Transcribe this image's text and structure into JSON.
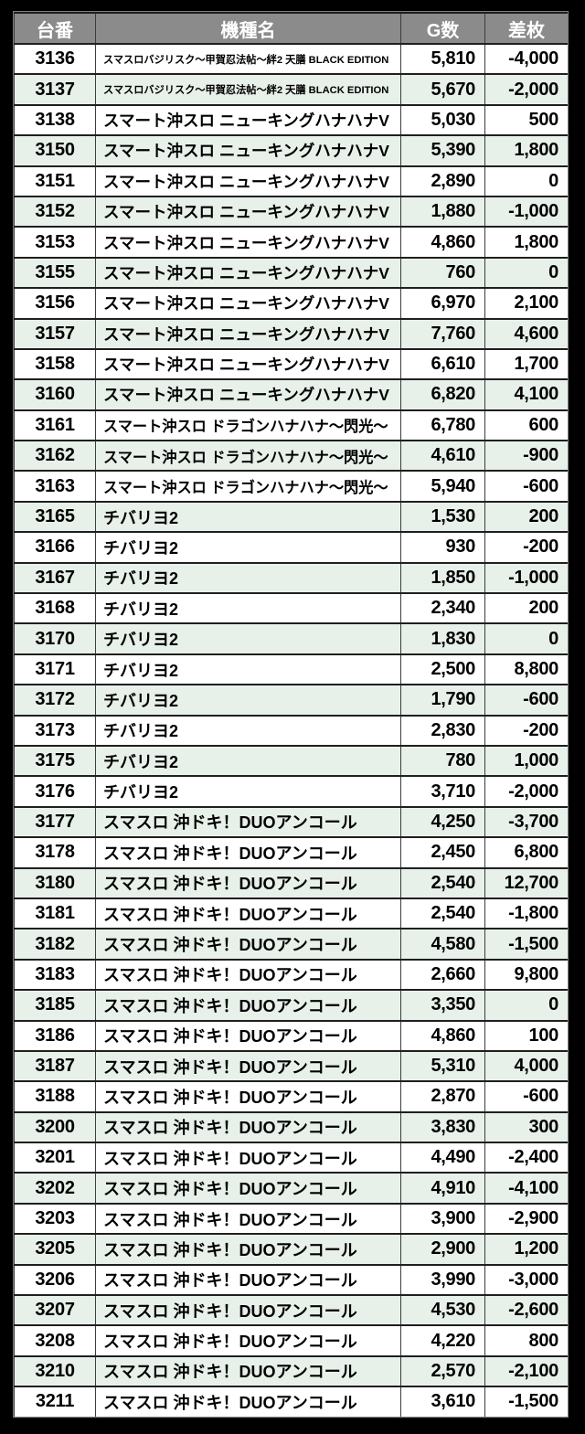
{
  "colors": {
    "page_background": "#000000",
    "header_background": "#8b8b8b",
    "header_text": "#ffffff",
    "row_background": "#ffffff",
    "row_alt_background": "#e8f0ea",
    "cell_text": "#000000",
    "horizontal_border": "#1f1f1f",
    "vertical_border": "#3c3c3c",
    "outer_outline": "#7d7d7d"
  },
  "table": {
    "columns": [
      {
        "label": "台番"
      },
      {
        "label": "機種名"
      },
      {
        "label": "G数"
      },
      {
        "label": "差枚"
      }
    ],
    "rows": [
      [
        "3136",
        "スマスロバジリスク～甲賀忍法帖～絆2 天膳 BLACK EDITION",
        "5,810",
        "-4,000"
      ],
      [
        "3137",
        "スマスロバジリスク～甲賀忍法帖～絆2 天膳 BLACK EDITION",
        "5,670",
        "-2,000"
      ],
      [
        "3138",
        "スマート沖スロ ニューキングハナハナV",
        "5,030",
        "500"
      ],
      [
        "3150",
        "スマート沖スロ ニューキングハナハナV",
        "5,390",
        "1,800"
      ],
      [
        "3151",
        "スマート沖スロ ニューキングハナハナV",
        "2,890",
        "0"
      ],
      [
        "3152",
        "スマート沖スロ ニューキングハナハナV",
        "1,880",
        "-1,000"
      ],
      [
        "3153",
        "スマート沖スロ ニューキングハナハナV",
        "4,860",
        "1,800"
      ],
      [
        "3155",
        "スマート沖スロ ニューキングハナハナV",
        "760",
        "0"
      ],
      [
        "3156",
        "スマート沖スロ ニューキングハナハナV",
        "6,970",
        "2,100"
      ],
      [
        "3157",
        "スマート沖スロ ニューキングハナハナV",
        "7,760",
        "4,600"
      ],
      [
        "3158",
        "スマート沖スロ ニューキングハナハナV",
        "6,610",
        "1,700"
      ],
      [
        "3160",
        "スマート沖スロ ニューキングハナハナV",
        "6,820",
        "4,100"
      ],
      [
        "3161",
        "スマート沖スロ ドラゴンハナハナ～閃光～",
        "6,780",
        "600"
      ],
      [
        "3162",
        "スマート沖スロ ドラゴンハナハナ～閃光～",
        "4,610",
        "-900"
      ],
      [
        "3163",
        "スマート沖スロ ドラゴンハナハナ～閃光～",
        "5,940",
        "-600"
      ],
      [
        "3165",
        "チバリヨ2",
        "1,530",
        "200"
      ],
      [
        "3166",
        "チバリヨ2",
        "930",
        "-200"
      ],
      [
        "3167",
        "チバリヨ2",
        "1,850",
        "-1,000"
      ],
      [
        "3168",
        "チバリヨ2",
        "2,340",
        "200"
      ],
      [
        "3170",
        "チバリヨ2",
        "1,830",
        "0"
      ],
      [
        "3171",
        "チバリヨ2",
        "2,500",
        "8,800"
      ],
      [
        "3172",
        "チバリヨ2",
        "1,790",
        "-600"
      ],
      [
        "3173",
        "チバリヨ2",
        "2,830",
        "-200"
      ],
      [
        "3175",
        "チバリヨ2",
        "780",
        "1,000"
      ],
      [
        "3176",
        "チバリヨ2",
        "3,710",
        "-2,000"
      ],
      [
        "3177",
        "スマスロ 沖ドキ！DUOアンコール",
        "4,250",
        "-3,700"
      ],
      [
        "3178",
        "スマスロ 沖ドキ！DUOアンコール",
        "2,450",
        "6,800"
      ],
      [
        "3180",
        "スマスロ 沖ドキ！DUOアンコール",
        "2,540",
        "12,700"
      ],
      [
        "3181",
        "スマスロ 沖ドキ！DUOアンコール",
        "2,540",
        "-1,800"
      ],
      [
        "3182",
        "スマスロ 沖ドキ！DUOアンコール",
        "4,580",
        "-1,500"
      ],
      [
        "3183",
        "スマスロ 沖ドキ！DUOアンコール",
        "2,660",
        "9,800"
      ],
      [
        "3185",
        "スマスロ 沖ドキ！DUOアンコール",
        "3,350",
        "0"
      ],
      [
        "3186",
        "スマスロ 沖ドキ！DUOアンコール",
        "4,860",
        "100"
      ],
      [
        "3187",
        "スマスロ 沖ドキ！DUOアンコール",
        "5,310",
        "4,000"
      ],
      [
        "3188",
        "スマスロ 沖ドキ！DUOアンコール",
        "2,870",
        "-600"
      ],
      [
        "3200",
        "スマスロ 沖ドキ！DUOアンコール",
        "3,830",
        "300"
      ],
      [
        "3201",
        "スマスロ 沖ドキ！DUOアンコール",
        "4,490",
        "-2,400"
      ],
      [
        "3202",
        "スマスロ 沖ドキ！DUOアンコール",
        "4,910",
        "-4,100"
      ],
      [
        "3203",
        "スマスロ 沖ドキ！DUOアンコール",
        "3,900",
        "-2,900"
      ],
      [
        "3205",
        "スマスロ 沖ドキ！DUOアンコール",
        "2,900",
        "1,200"
      ],
      [
        "3206",
        "スマスロ 沖ドキ！DUOアンコール",
        "3,990",
        "-3,000"
      ],
      [
        "3207",
        "スマスロ 沖ドキ！DUOアンコール",
        "4,530",
        "-2,600"
      ],
      [
        "3208",
        "スマスロ 沖ドキ！DUOアンコール",
        "4,220",
        "800"
      ],
      [
        "3210",
        "スマスロ 沖ドキ！DUOアンコール",
        "2,570",
        "-2,100"
      ],
      [
        "3211",
        "スマスロ 沖ドキ！DUOアンコール",
        "3,610",
        "-1,500"
      ]
    ]
  }
}
